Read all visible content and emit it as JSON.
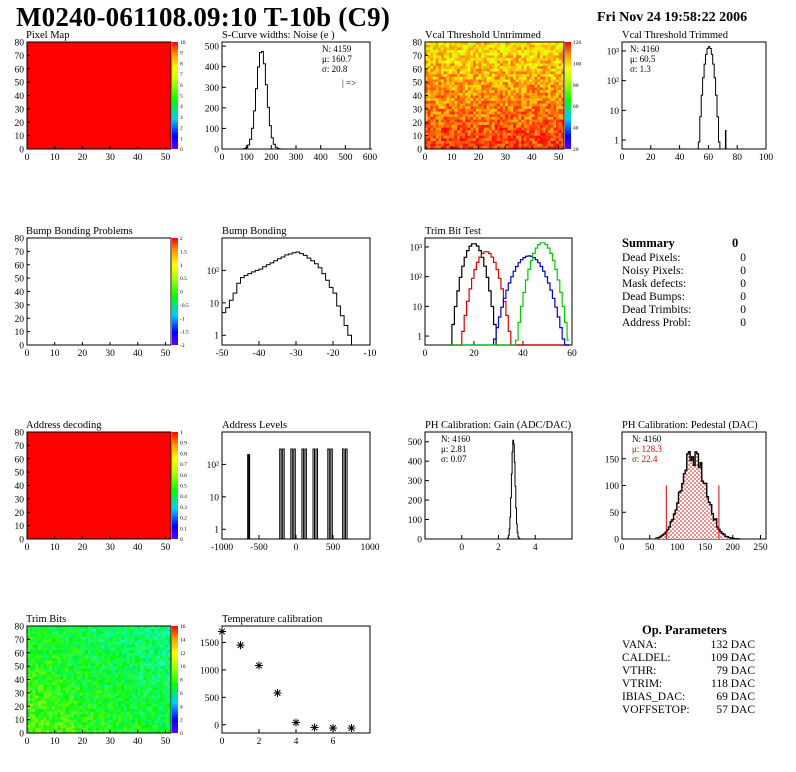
{
  "header": {
    "title": "M0240-061108.09:10 T-10b (C9)",
    "date": "Fri Nov 24 19:58:22 2006"
  },
  "summary": {
    "title": "Summary",
    "value": "0",
    "rows": [
      {
        "label": "Dead Pixels:",
        "value": "0"
      },
      {
        "label": "Noisy Pixels:",
        "value": "0"
      },
      {
        "label": "Mask defects:",
        "value": "0"
      },
      {
        "label": "Dead Bumps:",
        "value": "0"
      },
      {
        "label": "Dead Trimbits:",
        "value": "0"
      },
      {
        "label": "Address Probl:",
        "value": "0"
      }
    ]
  },
  "op_parameters": {
    "title": "Op. Parameters",
    "rows": [
      {
        "label": "VANA:",
        "value": "132 DAC"
      },
      {
        "label": "CALDEL:",
        "value": "109 DAC"
      },
      {
        "label": "VTHR:",
        "value": "79 DAC"
      },
      {
        "label": "VTRIM:",
        "value": "118 DAC"
      },
      {
        "label": "IBIAS_DAC:",
        "value": "69 DAC"
      },
      {
        "label": "VOFFSETOP:",
        "value": "57 DAC"
      }
    ]
  },
  "chart_data": [
    {
      "type": "heatmap",
      "title": "Pixel Map",
      "xlim": [
        0,
        52
      ],
      "ylim": [
        0,
        80
      ],
      "xticks": [
        "0",
        "10",
        "20",
        "30",
        "40",
        "50"
      ],
      "yticks": [
        "0",
        "10",
        "20",
        "30",
        "40",
        "50",
        "60",
        "70",
        "80"
      ],
      "fill": "uniform",
      "fill_color": "#ff0000",
      "zlim": [
        0,
        10
      ],
      "zticks": [
        "10",
        "9",
        "8",
        "7",
        "6",
        "5",
        "4",
        "3",
        "2",
        "1",
        "0"
      ]
    },
    {
      "type": "line",
      "title": "S-Curve widths: Noise (e )",
      "xlim": [
        0,
        600
      ],
      "ylim": [
        0,
        520
      ],
      "xticks": [
        "0",
        "100",
        "200",
        "300",
        "400",
        "500",
        "600"
      ],
      "yticks": [
        "0",
        "100",
        "200",
        "300",
        "400",
        "500"
      ],
      "stats": [
        "N: 4159",
        "μ: 160.7",
        "σ: 20.8"
      ],
      "note": "| =>",
      "peak": {
        "mean": 160.7,
        "sigma": 20.8,
        "max": 480
      }
    },
    {
      "type": "heatmap",
      "title": "Vcal Threshold Untrimmed",
      "xlim": [
        0,
        52
      ],
      "ylim": [
        0,
        80
      ],
      "xticks": [
        "0",
        "10",
        "20",
        "30",
        "40",
        "50"
      ],
      "yticks": [
        "0",
        "10",
        "20",
        "30",
        "40",
        "50",
        "60",
        "70",
        "80"
      ],
      "fill": "gradient",
      "zlim": [
        0,
        120
      ],
      "zticks": [
        "120",
        "100",
        "80",
        "60",
        "40",
        "20"
      ]
    },
    {
      "type": "line",
      "title": "Vcal Threshold Trimmed",
      "scale": "log",
      "xlim": [
        0,
        100
      ],
      "ylim": [
        0.5,
        2000
      ],
      "xticks": [
        "0",
        "20",
        "40",
        "60",
        "80",
        "100"
      ],
      "yticks": [
        "1",
        "10",
        "10²",
        "10³"
      ],
      "stats": [
        "N: 4160",
        "μ: 60.5",
        "σ: 1.3"
      ],
      "peak": {
        "mean": 60.5,
        "sigma": 1.3,
        "max": 1400
      },
      "extra": [
        {
          "x": 72,
          "y": 1
        }
      ]
    },
    {
      "type": "heatmap",
      "title": "Bump Bonding Problems",
      "xlim": [
        0,
        52
      ],
      "ylim": [
        0,
        80
      ],
      "xticks": [
        "0",
        "10",
        "20",
        "30",
        "40",
        "50"
      ],
      "yticks": [
        "0",
        "10",
        "20",
        "30",
        "40",
        "50",
        "60",
        "70",
        "80"
      ],
      "fill": "empty",
      "zlim": [
        -2,
        2
      ],
      "zticks": [
        "2",
        "1.5",
        "1",
        "0.5",
        "0",
        "-0.5",
        "-1",
        "-1.5",
        "-2"
      ]
    },
    {
      "type": "line",
      "title": "Bump Bonding",
      "scale": "log",
      "xlim": [
        -50,
        -10
      ],
      "ylim": [
        0.5,
        1000
      ],
      "xticks": [
        "-50",
        "-40",
        "-30",
        "-20",
        "-10"
      ],
      "yticks": [
        "1",
        "10",
        "10²"
      ],
      "x": [
        -50,
        -49,
        -48,
        -47,
        -46,
        -45,
        -44,
        -43,
        -42,
        -41,
        -40,
        -39,
        -38,
        -37,
        -36,
        -35,
        -34,
        -33,
        -32,
        -31,
        -30,
        -29,
        -28,
        -27,
        -26,
        -25,
        -24,
        -23,
        -22,
        -21,
        -20,
        -19,
        -18,
        -17,
        -16,
        -15,
        -14
      ],
      "y": [
        5,
        7,
        12,
        20,
        40,
        60,
        70,
        80,
        90,
        100,
        110,
        130,
        150,
        170,
        200,
        230,
        260,
        300,
        320,
        350,
        370,
        330,
        290,
        240,
        200,
        160,
        120,
        80,
        50,
        30,
        20,
        8,
        4,
        2,
        1,
        0.5,
        0.5
      ]
    },
    {
      "type": "line",
      "title": "Trim Bit Test",
      "scale": "log",
      "xlim": [
        0,
        60
      ],
      "ylim": [
        0.5,
        2000
      ],
      "xticks": [
        "0",
        "20",
        "40",
        "60"
      ],
      "yticks": [
        "1",
        "10",
        "10²",
        "10³"
      ],
      "series": [
        {
          "color": "#000000",
          "mean": 20,
          "sigma": 1.6,
          "max": 1300
        },
        {
          "color": "#dd0000",
          "mean": 25,
          "sigma": 1.8,
          "max": 700
        },
        {
          "color": "#0000cc",
          "mean": 42.5,
          "sigma": 2.6,
          "max": 500
        },
        {
          "color": "#00cc00",
          "mean": 48,
          "sigma": 1.8,
          "max": 1400
        }
      ]
    },
    {
      "type": "heatmap",
      "title": "Address decoding",
      "xlim": [
        0,
        52
      ],
      "ylim": [
        0,
        80
      ],
      "xticks": [
        "0",
        "10",
        "20",
        "30",
        "40",
        "50"
      ],
      "yticks": [
        "0",
        "10",
        "20",
        "30",
        "40",
        "50",
        "60",
        "70",
        "80"
      ],
      "fill": "uniform",
      "fill_color": "#ff0000",
      "zlim": [
        0,
        1
      ],
      "zticks": [
        "1",
        "0.9",
        "0.8",
        "0.7",
        "0.6",
        "0.5",
        "0.4",
        "0.3",
        "0.2",
        "0.1",
        "0"
      ]
    },
    {
      "type": "line",
      "title": "Address Levels",
      "scale": "log",
      "xlim": [
        -1000,
        1000
      ],
      "ylim": [
        0.5,
        1000
      ],
      "xticks": [
        "-1000",
        "-500",
        "0",
        "500",
        "1000"
      ],
      "yticks": [
        "1",
        "10",
        "10²"
      ],
      "peaks": [
        -650,
        -200,
        -50,
        100,
        250,
        450,
        650
      ],
      "peak_max": 300
    },
    {
      "type": "line",
      "title": "PH Calibration: Gain (ADC/DAC)",
      "xlim": [
        -2,
        6
      ],
      "ylim": [
        0,
        550
      ],
      "xticks": [
        "0",
        "2",
        "4"
      ],
      "yticks": [
        "0",
        "100",
        "200",
        "300",
        "400",
        "500"
      ],
      "stats": [
        "N: 4160",
        "μ: 2.81",
        "σ: 0.07"
      ],
      "peak": {
        "mean": 2.81,
        "sigma": 0.07,
        "max": 510
      }
    },
    {
      "type": "line",
      "title": "PH Calibration: Pedestal (DAC)",
      "xlim": [
        0,
        260
      ],
      "ylim": [
        0,
        200
      ],
      "xticks": [
        "0",
        "50",
        "100",
        "150",
        "200",
        "250"
      ],
      "yticks": [
        "0",
        "50",
        "100",
        "150"
      ],
      "stats": [
        "N: 4160",
        "μ: 128.3",
        "σ: 22.4"
      ],
      "stats_color": [
        "#000000",
        "#dd0000",
        "#dd0000"
      ],
      "peak": {
        "mean": 128.3,
        "sigma": 22.4,
        "max": 160
      }
    },
    {
      "type": "heatmap",
      "title": "Trim Bits",
      "xlim": [
        0,
        52
      ],
      "ylim": [
        0,
        80
      ],
      "xticks": [
        "0",
        "10",
        "20",
        "30",
        "40",
        "50"
      ],
      "yticks": [
        "0",
        "10",
        "20",
        "30",
        "40",
        "50",
        "60",
        "70",
        "80"
      ],
      "fill": "gradient-green",
      "zlim": [
        0,
        16
      ],
      "zticks": [
        "16",
        "14",
        "12",
        "10",
        "8",
        "6",
        "4",
        "2",
        "0"
      ]
    },
    {
      "type": "scatter",
      "title": "Temperature calibration",
      "xlim": [
        0,
        8
      ],
      "ylim": [
        -150,
        1800
      ],
      "xticks": [
        "0",
        "2",
        "4",
        "6"
      ],
      "yticks": [
        "0",
        "500",
        "1000",
        "1500"
      ],
      "x": [
        0,
        1,
        2,
        3,
        4,
        5,
        6,
        7
      ],
      "y": [
        1700,
        1450,
        1080,
        580,
        40,
        -50,
        -60,
        -60
      ]
    }
  ]
}
